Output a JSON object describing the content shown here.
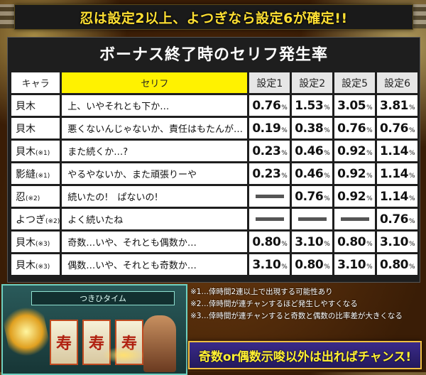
{
  "banner": {
    "text": "忍は設定2以上、よつぎなら設定6が確定!!"
  },
  "table": {
    "title": "ボーナス終了時のセリフ発生率",
    "headers": {
      "chara": "キャラ",
      "serif": "セリフ",
      "settings": [
        "設定1",
        "設定2",
        "設定5",
        "設定6"
      ]
    },
    "rows": [
      {
        "chara": "貝木",
        "note": "",
        "serif": "上、いやそれとも下か…",
        "values": [
          "0.76",
          "1.53",
          "3.05",
          "3.81"
        ]
      },
      {
        "chara": "貝木",
        "note": "",
        "serif": "悪くないんじゃないか、責任はもたんが…",
        "values": [
          "0.19",
          "0.38",
          "0.76",
          "0.76"
        ]
      },
      {
        "chara": "貝木",
        "note": "(※1)",
        "serif": "また続くか…?",
        "values": [
          "0.23",
          "0.46",
          "0.92",
          "1.14"
        ]
      },
      {
        "chara": "影縫",
        "note": "(※1)",
        "serif": "やるやないか、また頑張りーや",
        "values": [
          "0.23",
          "0.46",
          "0.92",
          "1.14"
        ]
      },
      {
        "chara": "忍",
        "note": "(※2)",
        "serif": "続いたの!　ぱないの!",
        "values": [
          "—",
          "0.76",
          "0.92",
          "1.14"
        ]
      },
      {
        "chara": "よつぎ",
        "note": "(※2)",
        "serif": "よく続いたね",
        "values": [
          "—",
          "—",
          "—",
          "0.76"
        ]
      },
      {
        "chara": "貝木",
        "note": "(※3)",
        "serif": "奇数…いや、それとも偶数か…",
        "values": [
          "0.80",
          "3.10",
          "0.80",
          "3.10"
        ]
      },
      {
        "chara": "貝木",
        "note": "(※3)",
        "serif": "偶数…いや、それとも奇数か…",
        "values": [
          "3.10",
          "0.80",
          "3.10",
          "0.80"
        ]
      }
    ],
    "percent_sign": "%"
  },
  "notes": [
    "※1…倖時間2連以上で出現する可能性あり",
    "※2…倖時間が連チャンするほど発生しやすくなる",
    "※3…倖時間が連チャンすると奇数と偶数の比率差が大きくなる"
  ],
  "cta": {
    "text": "奇数or偶数示唆以外は出ればチャンス!"
  },
  "game_art": {
    "topbar": "つきひタイム",
    "reel_symbol": "寿"
  },
  "colors": {
    "banner_text": "#ffe033",
    "serif_header": "#fff200",
    "cta_bg": "#2e2270",
    "cta_border": "#f0c040"
  }
}
